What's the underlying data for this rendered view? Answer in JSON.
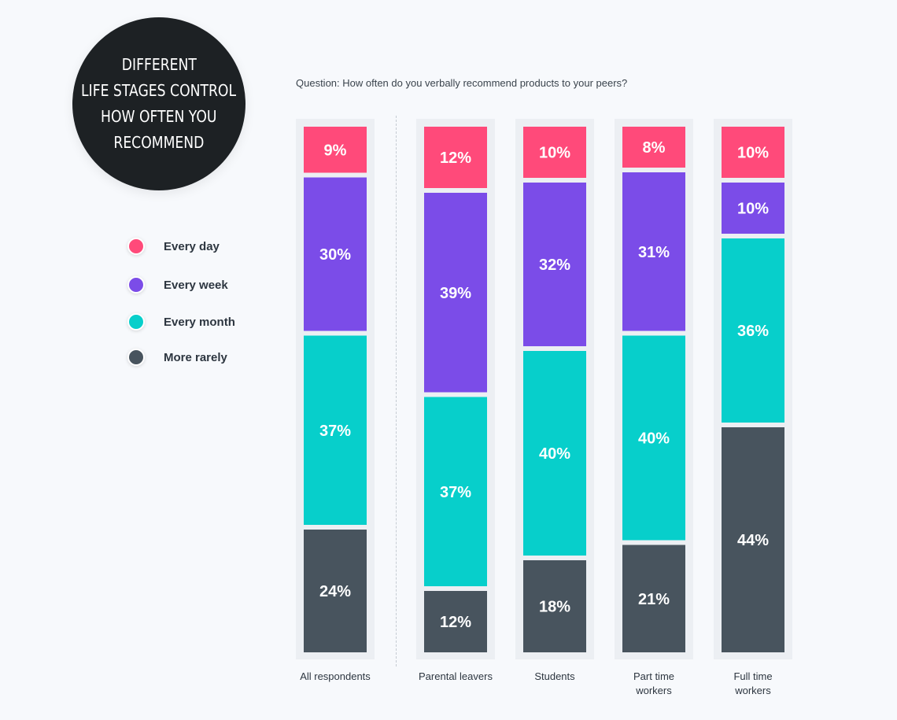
{
  "title": {
    "lines": [
      "DIFFERENT",
      "LIFE STAGES CONTROL",
      "HOW OFTEN YOU",
      "RECOMMEND"
    ]
  },
  "question": "Question: How often do you verbally recommend products to your peers?",
  "legend": [
    {
      "label": "Every day",
      "color": "#ff4a7a"
    },
    {
      "label": "Every week",
      "color": "#7b4ce8"
    },
    {
      "label": "Every month",
      "color": "#07cfcb"
    },
    {
      "label": "More rarely",
      "color": "#48545e"
    }
  ],
  "chart_data": {
    "type": "bar",
    "stacked": true,
    "categories": [
      [
        "All respondents"
      ],
      [
        "Parental leavers"
      ],
      [
        "Students"
      ],
      [
        "Part time",
        "workers"
      ],
      [
        "Full time",
        "workers"
      ]
    ],
    "series": [
      {
        "name": "Every day",
        "color": "#ff4a7a",
        "values": [
          9,
          12,
          10,
          8,
          10
        ]
      },
      {
        "name": "Every week",
        "color": "#7b4ce8",
        "values": [
          30,
          39,
          32,
          31,
          10
        ]
      },
      {
        "name": "Every month",
        "color": "#07cfcb",
        "values": [
          37,
          37,
          40,
          40,
          36
        ]
      },
      {
        "name": "More rarely",
        "color": "#48545e",
        "values": [
          24,
          12,
          18,
          21,
          44
        ]
      }
    ],
    "value_suffix": "%",
    "legend_position": "left"
  }
}
